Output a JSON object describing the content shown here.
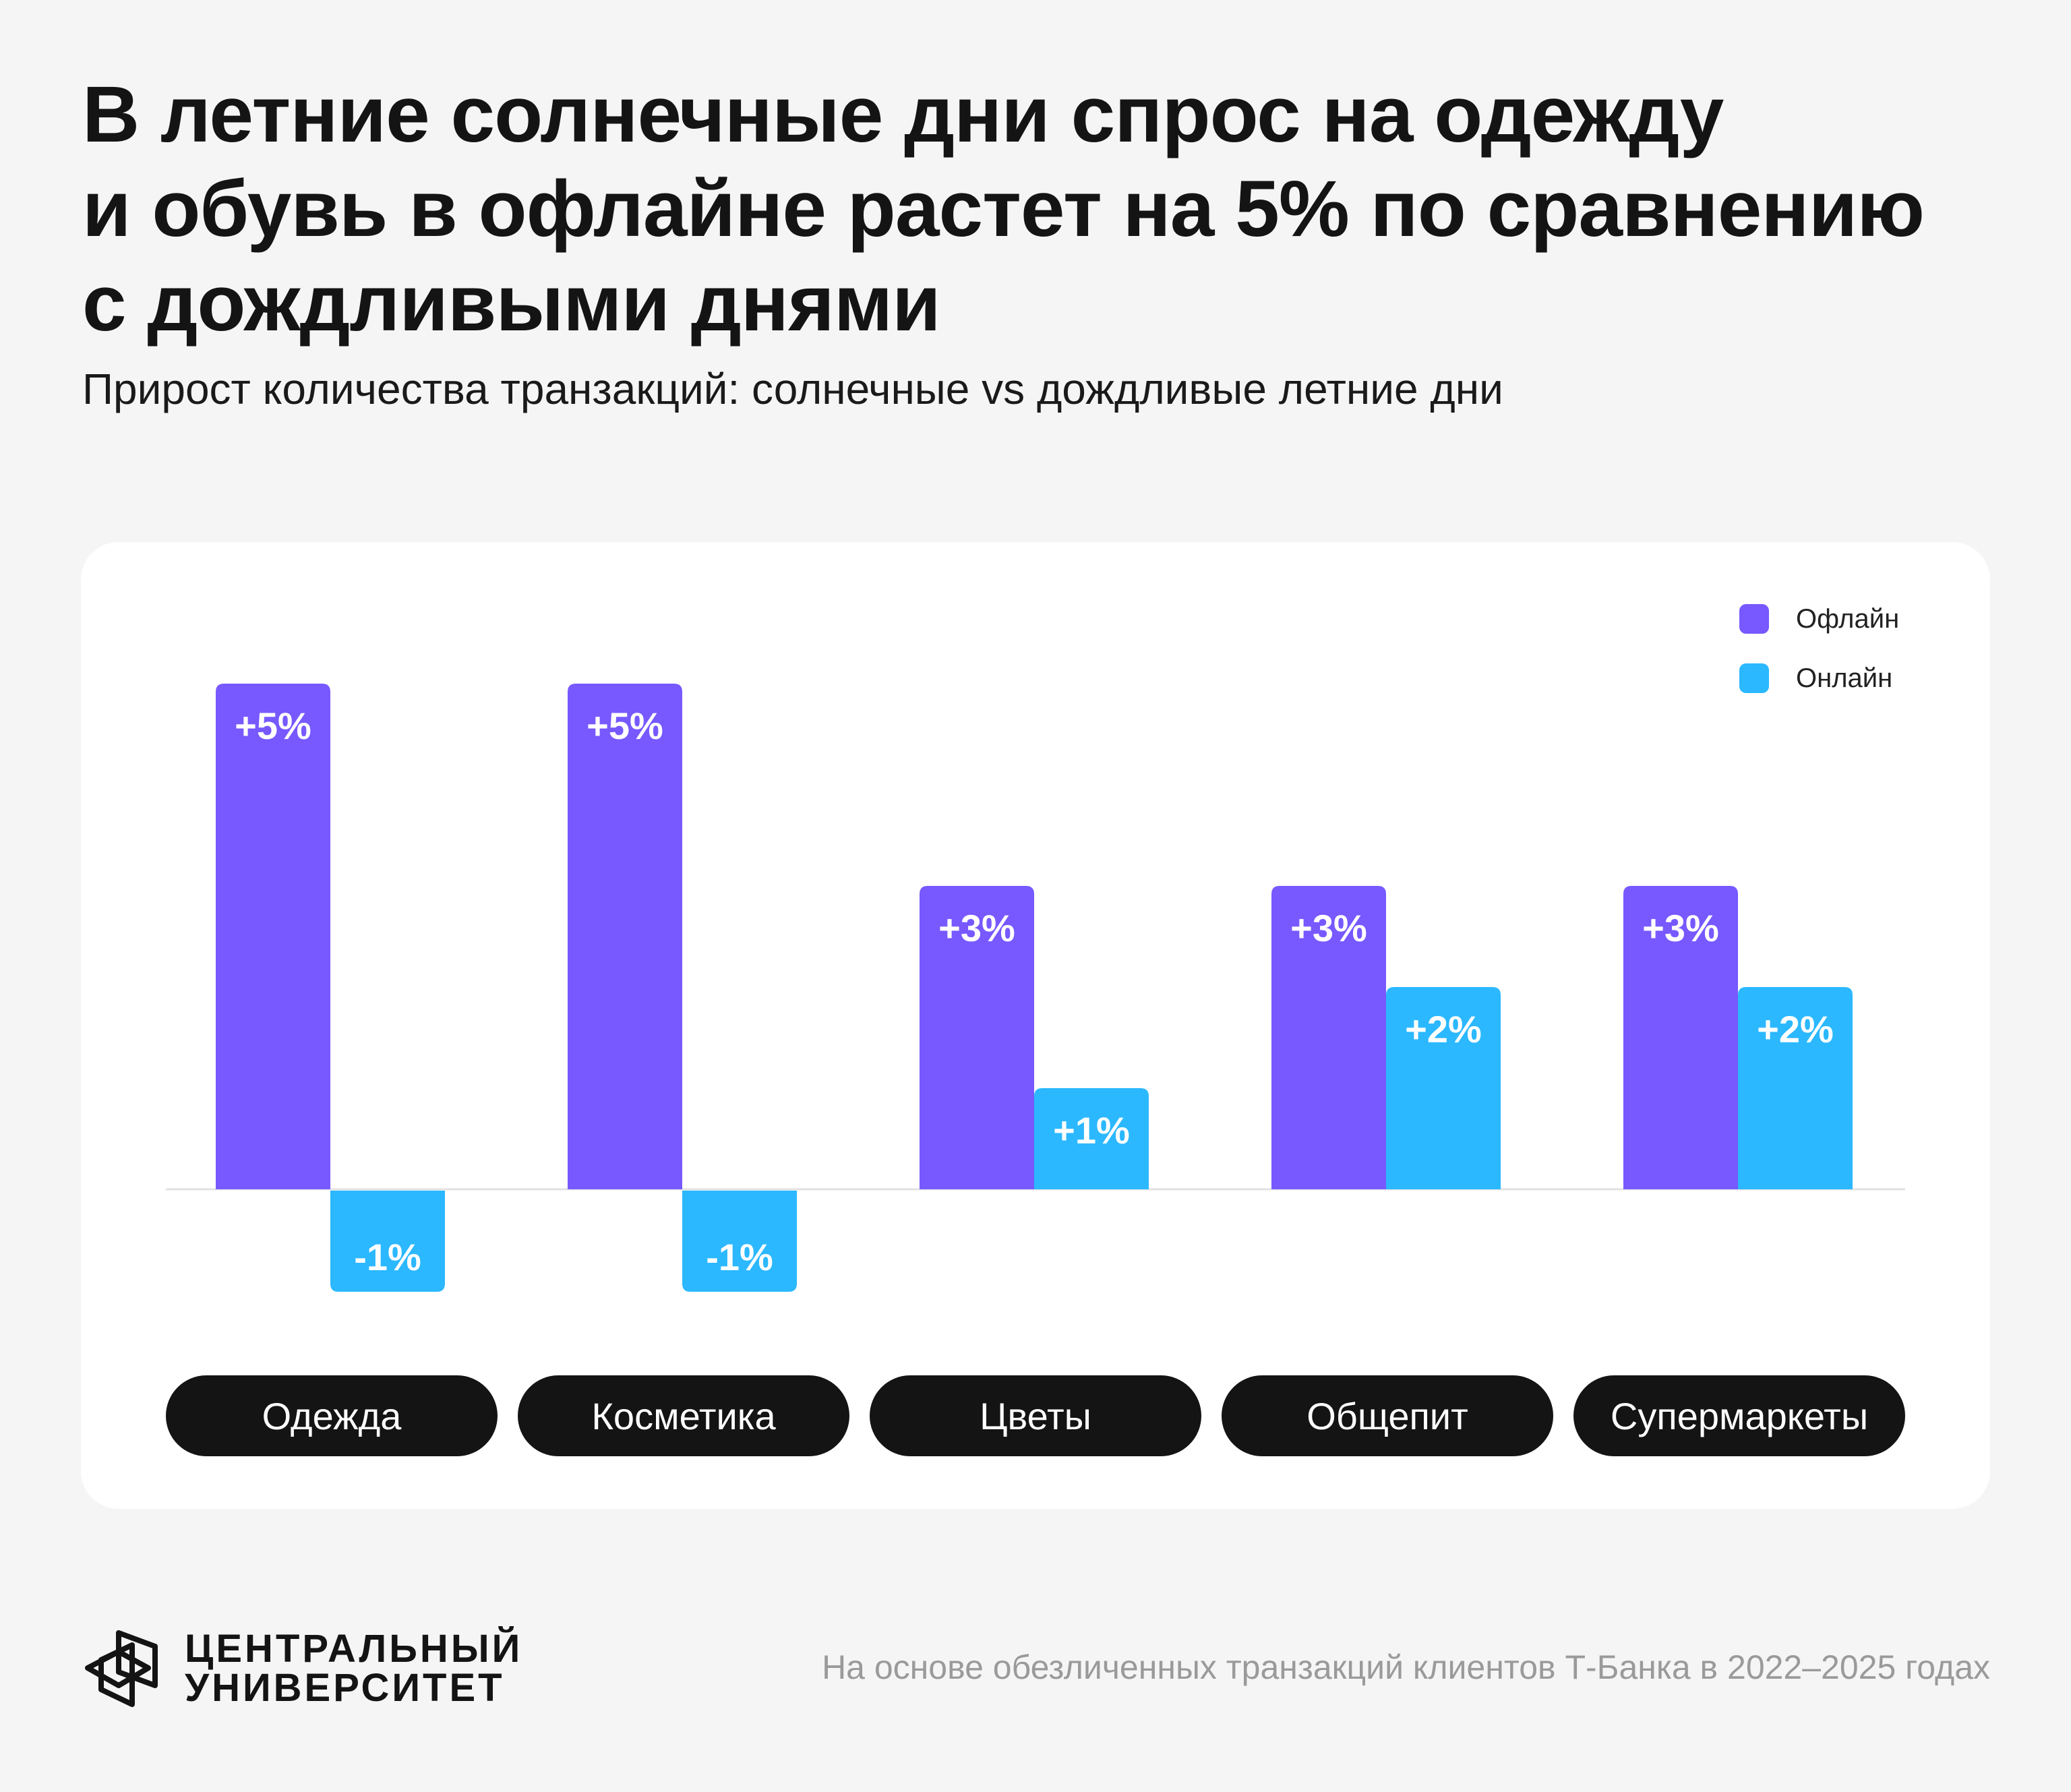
{
  "header": {
    "title_lines": [
      "В летние солнечные дни спрос на одежду",
      "и обувь в офлайне растет на 5% по сравнению",
      "с дождливыми днями"
    ],
    "subtitle": "Прирост количества транзакций: солнечные vs дождливые летние дни"
  },
  "legend": {
    "items": [
      {
        "label": "Офлайн",
        "color": "#7759ff"
      },
      {
        "label": "Онлайн",
        "color": "#2bb8ff"
      }
    ]
  },
  "chart_data": {
    "type": "bar",
    "categories": [
      "Одежда",
      "Косметика",
      "Цветы",
      "Общепит",
      "Супермаркеты"
    ],
    "series": [
      {
        "name": "Офлайн",
        "values": [
          5,
          5,
          3,
          3,
          3
        ],
        "labels": [
          "+5%",
          "+5%",
          "+3%",
          "+3%",
          "+3%"
        ],
        "color": "#7759ff"
      },
      {
        "name": "Онлайн",
        "values": [
          -1,
          -1,
          1,
          2,
          2
        ],
        "labels": [
          "-1%",
          "-1%",
          "+1%",
          "+2%",
          "+2%"
        ],
        "color": "#2bb8ff"
      }
    ],
    "ylim": [
      -1,
      5
    ],
    "grid": false,
    "legend_position": "top-right",
    "unit": "%"
  },
  "footer": {
    "logo_lines": [
      "ЦЕНТРАЛЬНЫЙ",
      "УНИВЕРСИТЕТ"
    ],
    "logo_icon": "cube-outline-icon",
    "note": "На основе обезличенных транзакций клиентов Т-Банка в 2022–2025 годах"
  }
}
